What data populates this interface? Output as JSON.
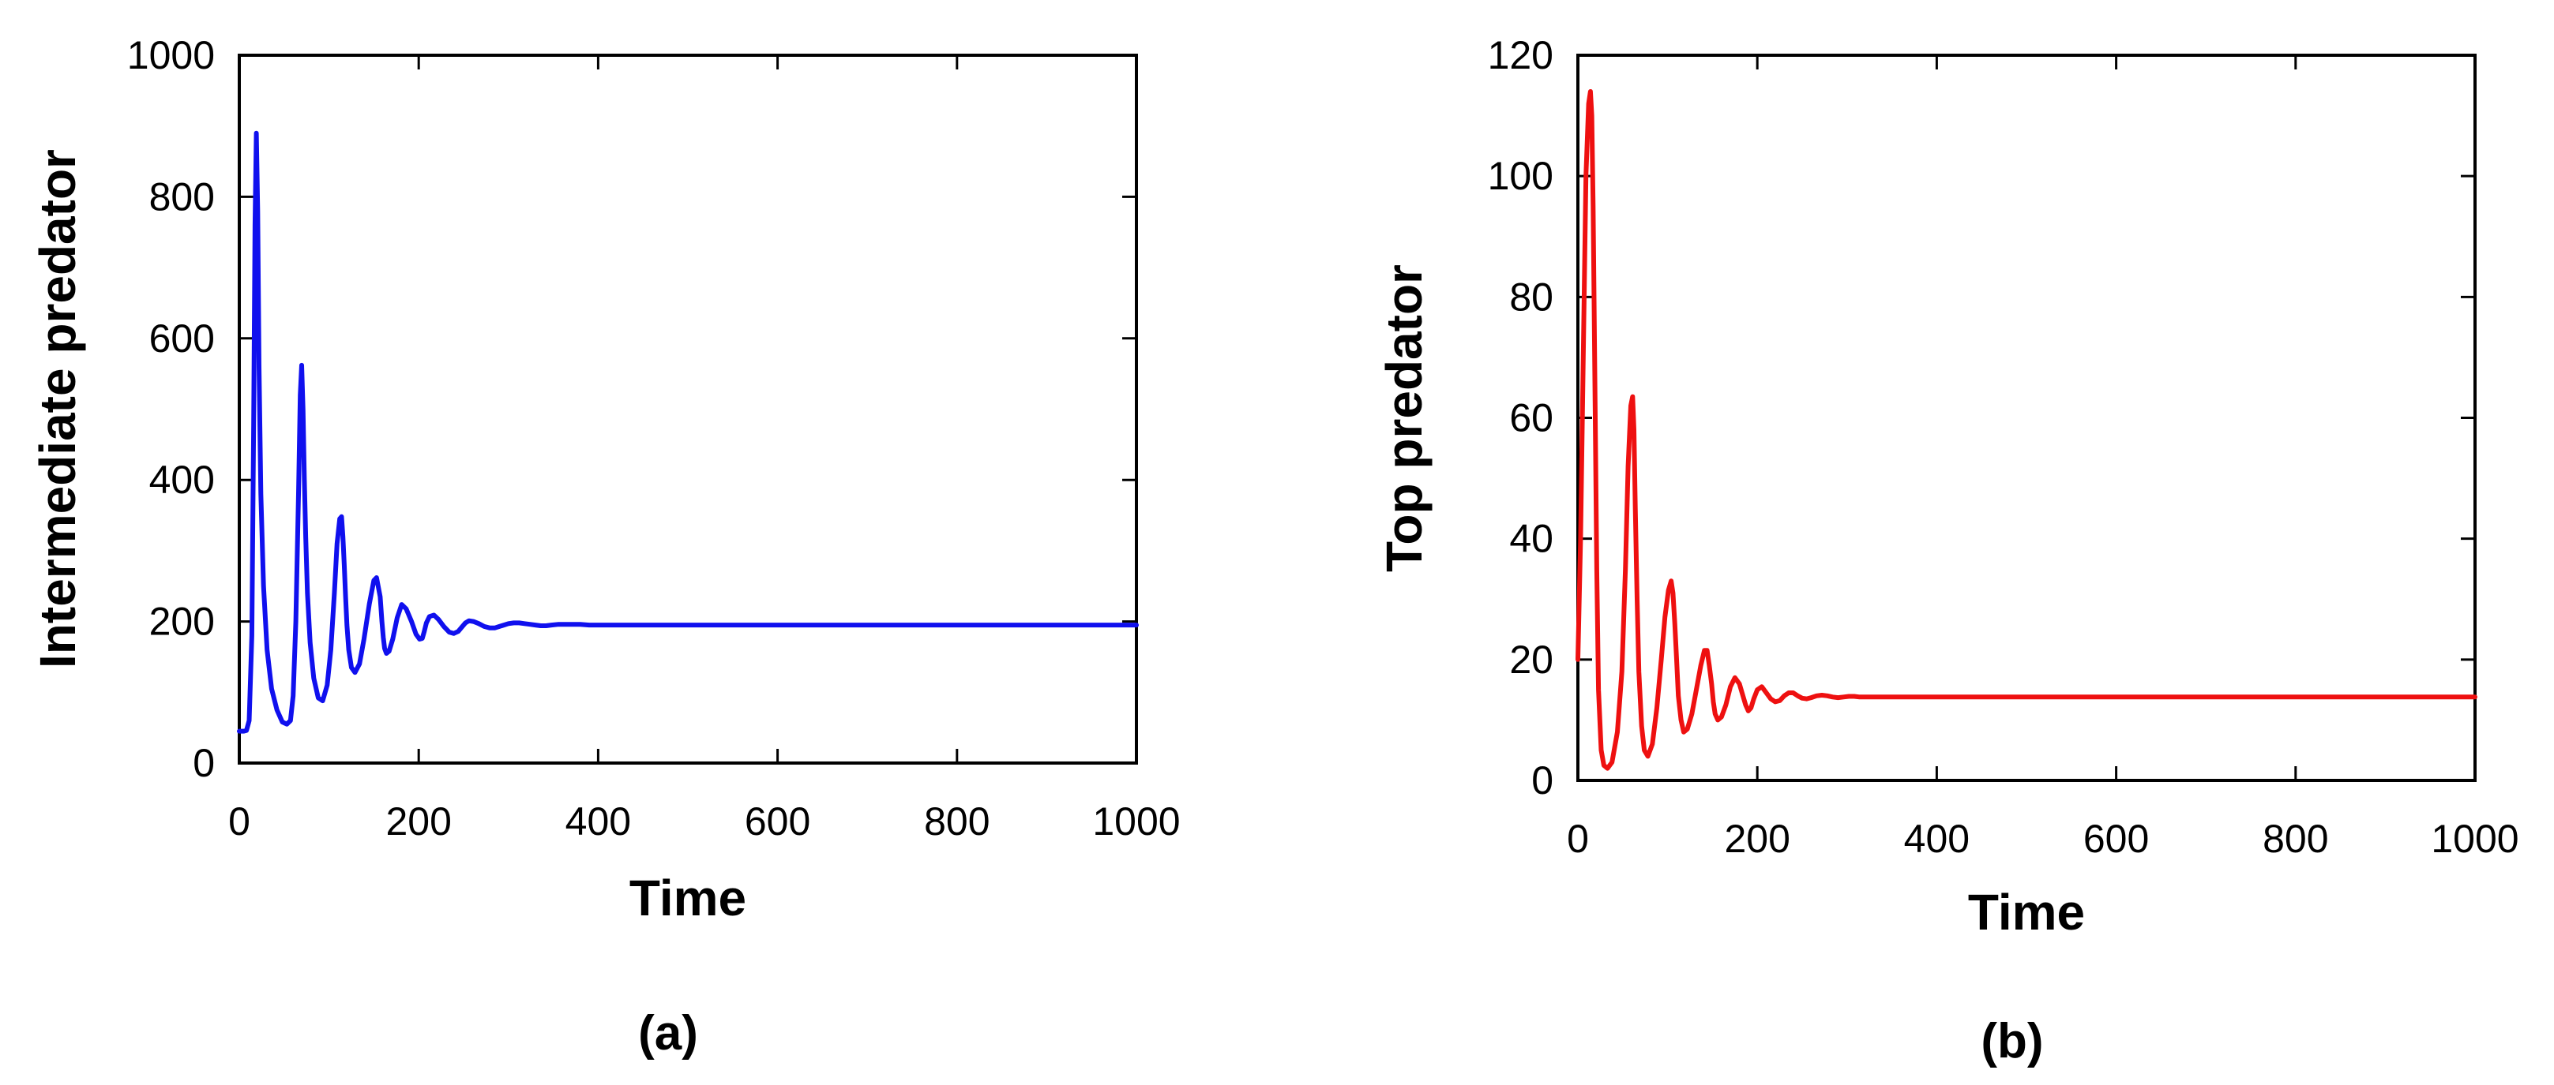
{
  "chart_data": [
    {
      "type": "line",
      "panel_label": "(a)",
      "xlabel": "Time",
      "ylabel": "Intermediate predator",
      "xlim": [
        0,
        1000
      ],
      "ylim": [
        0,
        1000
      ],
      "xticks": [
        "0",
        "200",
        "400",
        "600",
        "800",
        "1000"
      ],
      "yticks": [
        "0",
        "200",
        "400",
        "600",
        "800",
        "1000"
      ],
      "xtick_values": [
        0,
        200,
        400,
        600,
        800,
        1000
      ],
      "ytick_values": [
        0,
        200,
        400,
        600,
        800,
        1000
      ],
      "grid": false,
      "color": "#1010ee",
      "series": [
        {
          "x": [
            0,
            5,
            8,
            11,
            14,
            16,
            17.5,
            19,
            20.5,
            22,
            24,
            27,
            31,
            36,
            42,
            48,
            53,
            57,
            60,
            63,
            66,
            68,
            69.5,
            71,
            72.5,
            74,
            76,
            79,
            83,
            88,
            93,
            98,
            102,
            106,
            109,
            112,
            114,
            115.5,
            117,
            118.5,
            120,
            122,
            125,
            129,
            134,
            139,
            145,
            150,
            153,
            157,
            159,
            160.5,
            162,
            164,
            167,
            171,
            176,
            181,
            186,
            192,
            197,
            201,
            204,
            206,
            208.5,
            212,
            217,
            222,
            228,
            234,
            239,
            244,
            248,
            252,
            256,
            261,
            267,
            273,
            279,
            285,
            290,
            295,
            300,
            306,
            312,
            318,
            324,
            330,
            336,
            342,
            348,
            356,
            364,
            372,
            380,
            390,
            400,
            420,
            440,
            470,
            500,
            550,
            600,
            700,
            800,
            900,
            1000
          ],
          "y": [
            45,
            45,
            46,
            60,
            180,
            480,
            760,
            890,
            780,
            560,
            380,
            250,
            160,
            105,
            75,
            58,
            55,
            60,
            95,
            200,
            380,
            520,
            562,
            500,
            400,
            320,
            240,
            170,
            120,
            92,
            88,
            110,
            160,
            240,
            310,
            345,
            348,
            320,
            280,
            235,
            195,
            160,
            135,
            128,
            140,
            175,
            225,
            258,
            262,
            235,
            200,
            178,
            162,
            155,
            158,
            175,
            205,
            224,
            218,
            200,
            182,
            175,
            176,
            185,
            198,
            207,
            209,
            203,
            193,
            185,
            183,
            186,
            192,
            198,
            201,
            200,
            197,
            193,
            191,
            191,
            193,
            195,
            197,
            198,
            198,
            197,
            196,
            195,
            194,
            194,
            195,
            196,
            196,
            196,
            196,
            195,
            195,
            195,
            195,
            195,
            195,
            195,
            195,
            195,
            195,
            195,
            195
          ]
        }
      ]
    },
    {
      "type": "line",
      "panel_label": "(b)",
      "xlabel": "Time",
      "ylabel": "Top predator",
      "xlim": [
        0,
        1000
      ],
      "ylim": [
        0,
        120
      ],
      "xticks": [
        "0",
        "200",
        "400",
        "600",
        "800",
        "1000"
      ],
      "yticks": [
        "0",
        "20",
        "40",
        "60",
        "80",
        "100",
        "120"
      ],
      "xtick_values": [
        0,
        200,
        400,
        600,
        800,
        1000
      ],
      "ytick_values": [
        0,
        20,
        40,
        60,
        80,
        100,
        120
      ],
      "grid": false,
      "color": "#ee1010",
      "series": [
        {
          "x": [
            0,
            3,
            6,
            9,
            12,
            14,
            15.5,
            17,
            19,
            21,
            23,
            26,
            29,
            33,
            38,
            44,
            49,
            53,
            56,
            59,
            61,
            62.5,
            64,
            66,
            68,
            71,
            74,
            78,
            83,
            88,
            93,
            97,
            101,
            104,
            106,
            108,
            110,
            112,
            115,
            118,
            122,
            127,
            132,
            137,
            141,
            144,
            146.5,
            149,
            151,
            153,
            156,
            160,
            165,
            170,
            175,
            180,
            184,
            187,
            190,
            193,
            196,
            200,
            205,
            210,
            215,
            220,
            225,
            230,
            235,
            240,
            245,
            250,
            255,
            260,
            266,
            272,
            278,
            284,
            290,
            296,
            302,
            308,
            314,
            320,
            326,
            332,
            340,
            348,
            356,
            365,
            375,
            390,
            410,
            450,
            500,
            600,
            700,
            800,
            900,
            1000
          ],
          "y": [
            20,
            40,
            70,
            100,
            112,
            114,
            110,
            95,
            65,
            35,
            15,
            5,
            2.5,
            2,
            3,
            8,
            18,
            35,
            52,
            62,
            63.5,
            58,
            45,
            30,
            18,
            9,
            5,
            4,
            6,
            12,
            20,
            27,
            31.5,
            33,
            31,
            26,
            20,
            14,
            10,
            8,
            8.5,
            11,
            15,
            19,
            21.5,
            21.5,
            19,
            16,
            13,
            11,
            10,
            10.5,
            12.5,
            15.5,
            17,
            16,
            14,
            12.5,
            11.5,
            12,
            13.5,
            15,
            15.5,
            14.5,
            13.5,
            13,
            13.2,
            14,
            14.5,
            14.5,
            14,
            13.6,
            13.5,
            13.7,
            14,
            14.1,
            14,
            13.8,
            13.7,
            13.8,
            13.9,
            13.9,
            13.8,
            13.8,
            13.8,
            13.8,
            13.8,
            13.8,
            13.8,
            13.8,
            13.8,
            13.8,
            13.8,
            13.8,
            13.8,
            13.8,
            13.8,
            13.8,
            13.8,
            13.8
          ]
        }
      ]
    }
  ]
}
